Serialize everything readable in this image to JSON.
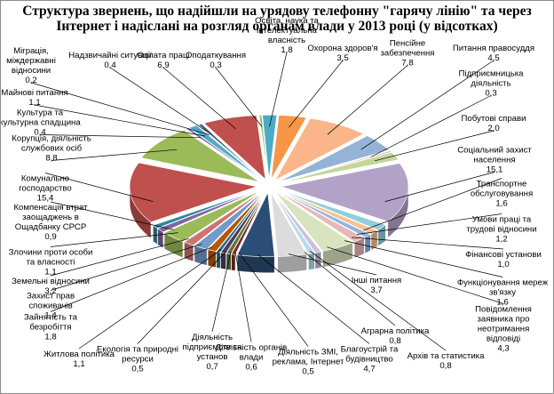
{
  "title_lines": [
    "Структура звернень, що надійшли на урядову телефонну \"гарячу лінію\" та через",
    "Інтернет і надіслані на розгляд органам влади у 2013 році  (у відсотках)"
  ],
  "chart_data": {
    "type": "pie",
    "title": "Структура звернень, що надійшли на урядову телефонну \"гарячу лінію\" та через Інтернет і надіслані на розгляд органам влади у 2013 році  (у відсотках)",
    "slices": [
      {
        "label": "Освіта, наука та інтелектуальна власність",
        "value": 1.8,
        "color": "#4bacc6"
      },
      {
        "label": "Охорона здоров'я",
        "value": 3.5,
        "color": "#f79646"
      },
      {
        "label": "Пенсійне забезпечення",
        "value": 7.8,
        "color": "#fab58a"
      },
      {
        "label": "Питання правосуддя",
        "value": 4.5,
        "color": "#95b3d7"
      },
      {
        "label": "Підприємницька діяльність",
        "value": 0.3,
        "color": "#d99694"
      },
      {
        "label": "Побутові справи",
        "value": 2.0,
        "color": "#c3d69b"
      },
      {
        "label": "Соціальний захист населення",
        "value": 15.1,
        "color": "#b3a2c7"
      },
      {
        "label": "Транспортне обслуговування",
        "value": 1.6,
        "color": "#93cddd"
      },
      {
        "label": "Умови праці та трудові відносини",
        "value": 1.2,
        "color": "#fac090"
      },
      {
        "label": "Фінансові установи",
        "value": 1.0,
        "color": "#8eb4e3"
      },
      {
        "label": "Функціонування мереж зв'язку",
        "value": 1.6,
        "color": "#e6b9b8"
      },
      {
        "label": "Повідомлення заявника про неотримання відповіді",
        "value": 4.3,
        "color": "#d7e4bd"
      },
      {
        "label": "Архів та статистика",
        "value": 0.8,
        "color": "#ccc1da"
      },
      {
        "label": "Аграрна політика",
        "value": 0.8,
        "color": "#b7dee8"
      },
      {
        "label": "Інші питання",
        "value": 3.7,
        "color": "#dcdcdc"
      },
      {
        "label": "Благоустрій та будівництво",
        "value": 4.7,
        "color": "#2c4d75"
      },
      {
        "label": "Діяльність ЗМІ, реклама, Інтернет",
        "value": 0.5,
        "color": "#772c2a"
      },
      {
        "label": "Діяльність органів влади",
        "value": 0.6,
        "color": "#5f7530"
      },
      {
        "label": "Діяльність підприємств та установ",
        "value": 0.7,
        "color": "#4d3b62"
      },
      {
        "label": "Екологія та природні ресурси",
        "value": 0.5,
        "color": "#276a7c"
      },
      {
        "label": "Житлова політика",
        "value": 1.1,
        "color": "#b65708"
      },
      {
        "label": "Зайнятість та безробіття",
        "value": 1.8,
        "color": "#729aca"
      },
      {
        "label": "Захист прав споживачів",
        "value": 1.4,
        "color": "#cd7371"
      },
      {
        "label": "Земельні відносини",
        "value": 3.2,
        "color": "#9bbb59"
      },
      {
        "label": "Злочини проти особи та власності",
        "value": 1.1,
        "color": "#8064a2"
      },
      {
        "label": "Компенсація втрат заощаджень в Ощадбанку СРСР",
        "value": 0.9,
        "color": "#31859c"
      },
      {
        "label": "Комунальне господарство",
        "value": 15.4,
        "color": "#c0504d"
      },
      {
        "label": "Корупція, діяльність службових осіб",
        "value": 8.8,
        "color": "#9bbb59"
      },
      {
        "label": "Культура та культурна спадщина",
        "value": 0.4,
        "color": "#8064a2"
      },
      {
        "label": "Майнові питання",
        "value": 1.1,
        "color": "#4bacc6"
      },
      {
        "label": "Міграція, міждержавні відносини",
        "value": 0.2,
        "color": "#f79646"
      },
      {
        "label": "Надзвичайні ситуації",
        "value": 0.4,
        "color": "#2c4d75"
      },
      {
        "label": "Оплата праці",
        "value": 6.9,
        "color": "#c0504d"
      },
      {
        "label": "Оподаткування",
        "value": 0.3,
        "color": "#9bbb59"
      }
    ],
    "legend": "none",
    "data_labels": "outside with leader lines"
  }
}
